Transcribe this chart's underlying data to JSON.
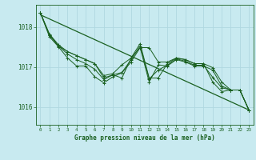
{
  "title": "Graphe pression niveau de la mer (hPa)",
  "background_color": "#c8eaf0",
  "grid_color": "#b0d8e0",
  "line_color": "#1a6020",
  "xlim": [
    -0.5,
    23.5
  ],
  "ylim": [
    1015.55,
    1018.55
  ],
  "yticks": [
    1016,
    1017,
    1018
  ],
  "xticks": [
    0,
    1,
    2,
    3,
    4,
    5,
    6,
    7,
    8,
    9,
    10,
    11,
    12,
    13,
    14,
    15,
    16,
    17,
    18,
    19,
    20,
    21,
    22,
    23
  ],
  "series": [
    {
      "x": [
        0,
        1,
        2,
        3,
        4,
        5,
        6,
        7,
        8,
        9,
        10,
        11,
        12,
        13,
        14,
        15,
        16,
        17,
        18,
        19,
        20,
        21,
        22,
        23
      ],
      "y": [
        1018.35,
        1017.82,
        1017.55,
        1017.38,
        1017.28,
        1017.18,
        1017.08,
        1016.78,
        1016.83,
        1017.05,
        1017.22,
        1017.48,
        1017.48,
        1017.12,
        1017.12,
        1017.22,
        1017.18,
        1017.08,
        1017.08,
        1016.98,
        1016.62,
        1016.42,
        1016.42,
        1015.92
      ]
    },
    {
      "x": [
        0,
        1,
        2,
        3,
        4,
        5,
        6,
        7,
        8,
        9,
        10,
        11,
        12,
        13,
        14,
        15,
        16,
        17,
        18,
        19,
        20,
        21,
        22,
        23
      ],
      "y": [
        1018.35,
        1017.8,
        1017.52,
        1017.38,
        1017.28,
        1017.18,
        1017.08,
        1016.72,
        1016.8,
        1016.72,
        1017.22,
        1017.58,
        1016.72,
        1016.72,
        1017.08,
        1017.22,
        1017.18,
        1017.08,
        1017.08,
        1016.62,
        1016.38,
        1016.42,
        1016.42,
        1015.92
      ]
    },
    {
      "x": [
        0,
        1,
        2,
        3,
        4,
        5,
        6,
        7,
        8,
        9,
        10,
        11,
        12,
        13,
        14,
        15,
        16,
        17,
        18,
        19,
        20,
        21,
        22,
        23
      ],
      "y": [
        1018.35,
        1017.75,
        1017.5,
        1017.22,
        1017.02,
        1017.02,
        1016.75,
        1016.6,
        1016.75,
        1016.85,
        1017.12,
        1017.48,
        1016.62,
        1017.05,
        1017.02,
        1017.18,
        1017.12,
        1017.02,
        1017.02,
        1016.92,
        1016.52,
        1016.42,
        1016.42,
        1015.92
      ]
    },
    {
      "x": [
        0,
        1,
        2,
        3,
        4,
        5,
        6,
        7,
        8,
        9,
        10,
        11,
        12,
        13,
        14,
        15,
        16,
        17,
        18,
        19,
        20,
        21,
        22,
        23
      ],
      "y": [
        1018.35,
        1017.79,
        1017.52,
        1017.32,
        1017.18,
        1017.08,
        1016.94,
        1016.68,
        1016.8,
        1016.86,
        1017.18,
        1017.52,
        1016.7,
        1016.92,
        1017.04,
        1017.2,
        1017.14,
        1017.04,
        1017.04,
        1016.74,
        1016.48,
        1016.42,
        1016.42,
        1015.92
      ]
    }
  ],
  "regression": {
    "x": [
      0,
      23
    ],
    "y": [
      1018.3,
      1015.92
    ]
  }
}
